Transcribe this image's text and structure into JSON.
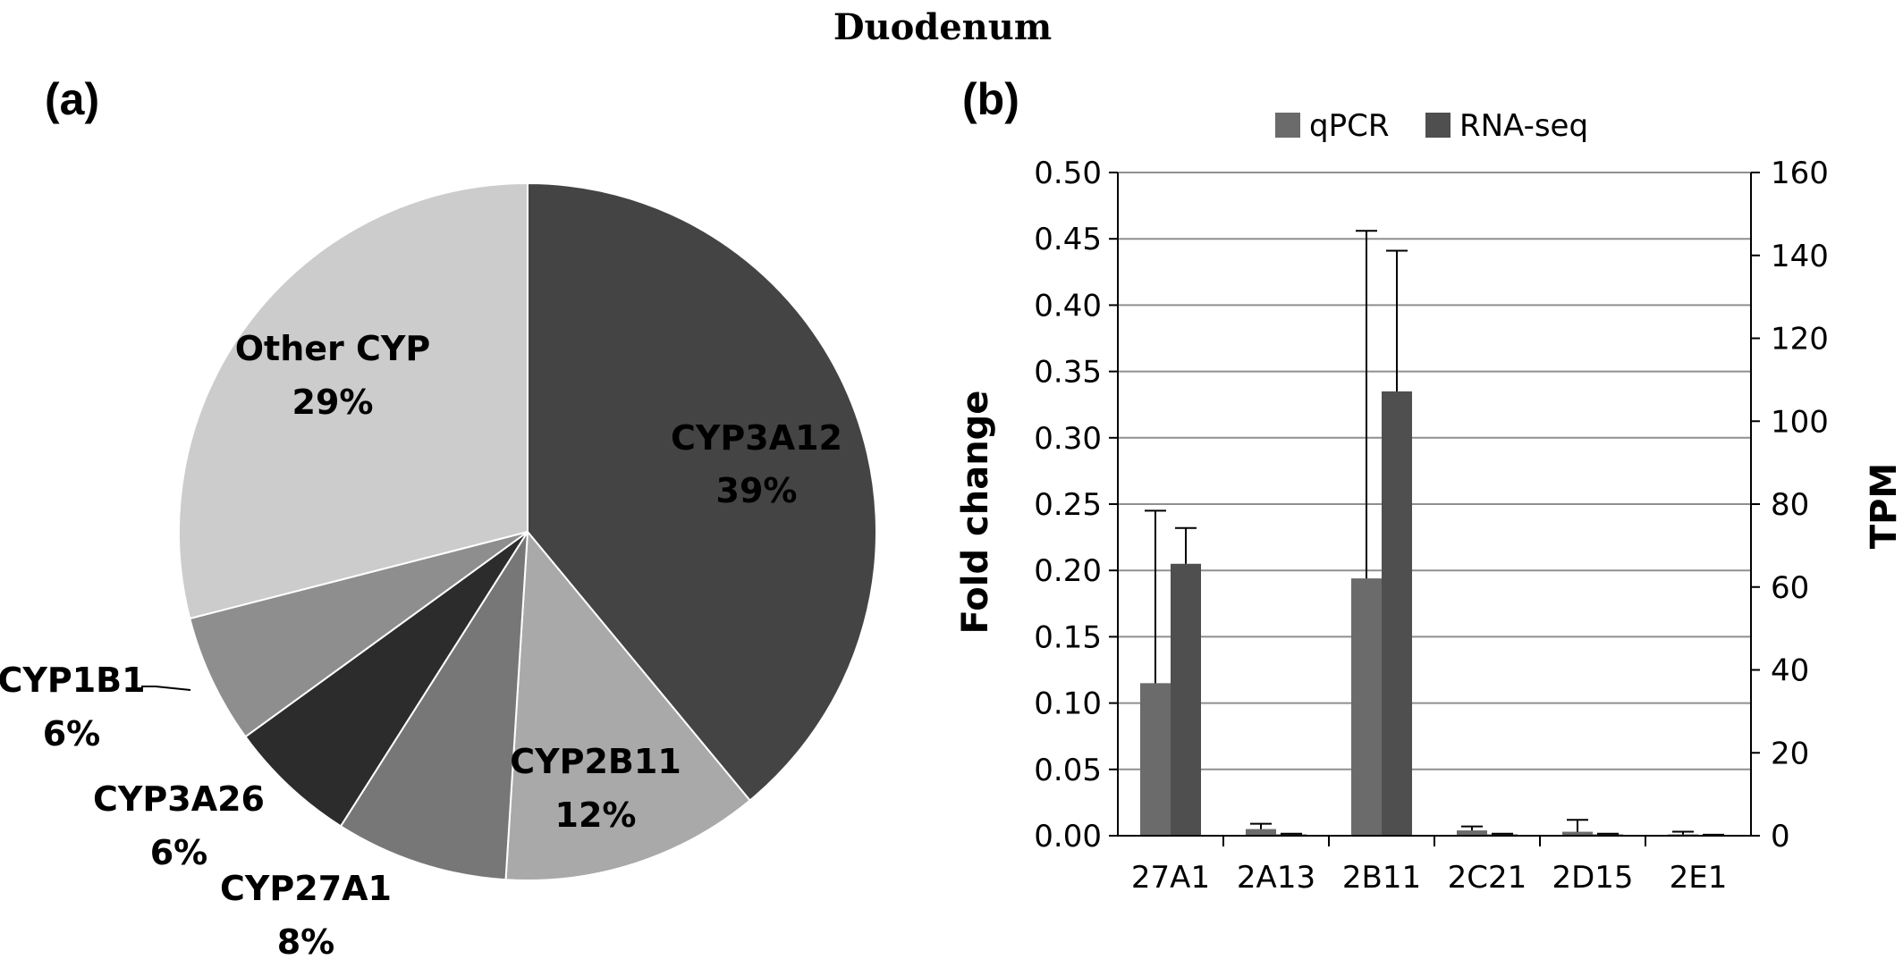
{
  "figure_title": "Duodenum",
  "colors": {
    "qpcr": "#6b6b6b",
    "rnaseq": "#4f4f4f",
    "gridline": "#8f8f8f"
  },
  "chart_data": [
    {
      "panel_label": "(a)",
      "type": "pie",
      "slices": [
        {
          "label": "CYP3A12",
          "value": 39,
          "value_label": "39%",
          "color": "#444444"
        },
        {
          "label": "CYP2B11",
          "value": 12,
          "value_label": "12%",
          "color": "#a9a9a9"
        },
        {
          "label": "CYP27A1",
          "value": 8,
          "value_label": "8%",
          "color": "#777777"
        },
        {
          "label": "CYP3A26",
          "value": 6,
          "value_label": "6%",
          "color": "#2c2c2c"
        },
        {
          "label": "CYP1B1",
          "value": 6,
          "value_label": "6%",
          "color": "#8e8e8e"
        },
        {
          "label": "Other CYP",
          "value": 29,
          "value_label": "29%",
          "color": "#cccccc"
        }
      ]
    },
    {
      "panel_label": "(b)",
      "type": "bar",
      "categories": [
        "27A1",
        "2A13",
        "2B11",
        "2C21",
        "2D15",
        "2E1"
      ],
      "series": [
        {
          "name": "qPCR",
          "axis": "left",
          "values": [
            0.115,
            0.005,
            0.194,
            0.004,
            0.003,
            0.001
          ],
          "error": [
            0.13,
            0.004,
            0.262,
            0.003,
            0.009,
            0.002
          ]
        },
        {
          "name": "RNA-seq",
          "axis": "left",
          "values": [
            0.205,
            0.001,
            0.335,
            0.001,
            0.001,
            0.0005
          ],
          "error": [
            0.027,
            0.0005,
            0.106,
            0.0005,
            0.0005,
            0.0003
          ]
        }
      ],
      "ylabel": "Fold change",
      "ylim": [
        0,
        0.5
      ],
      "yticks": [
        "0.00",
        "0.05",
        "0.10",
        "0.15",
        "0.20",
        "0.25",
        "0.30",
        "0.35",
        "0.40",
        "0.45",
        "0.50"
      ],
      "y2label": "TPM",
      "y2lim": [
        0,
        160
      ],
      "y2ticks": [
        "0",
        "20",
        "40",
        "60",
        "80",
        "100",
        "120",
        "140",
        "160"
      ],
      "grid": true,
      "legend_position": "top"
    }
  ]
}
